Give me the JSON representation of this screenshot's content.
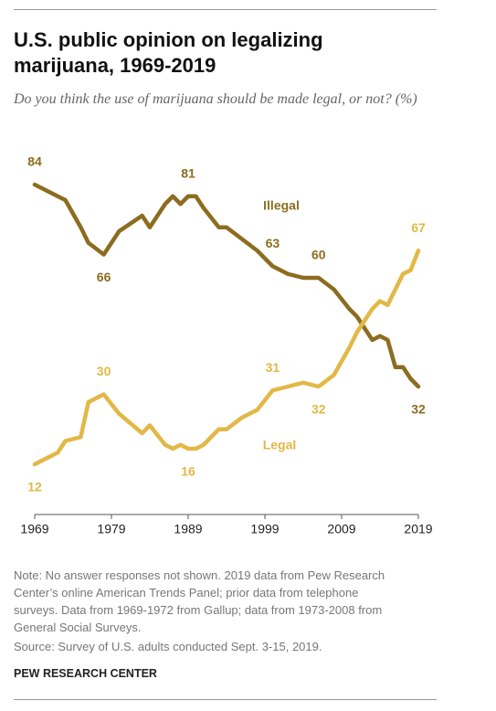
{
  "chart_data": {
    "type": "line",
    "title": "U.S. public opinion on legalizing marijuana, 1969-2019",
    "subtitle": "Do you think the use of marijuana should be made legal, or not? (%)",
    "note": "Note: No answer responses not shown. 2019 data from Pew Research Center’s online American Trends Panel; prior data from telephone surveys. Data from 1969-1972 from Gallup; data from 1973-2008 from General Social Surveys.",
    "source": "Source: Survey of U.S. adults conducted Sept. 3-15, 2019.",
    "credit": "PEW RESEARCH CENTER",
    "x": [
      1969,
      1972,
      1973,
      1975,
      1976,
      1978,
      1980,
      1983,
      1984,
      1986,
      1987,
      1988,
      1989,
      1990,
      1991,
      1993,
      1994,
      1996,
      1998,
      2000,
      2002,
      2004,
      2006,
      2008,
      2010,
      2011,
      2013,
      2014,
      2015,
      2016,
      2017,
      2018,
      2019
    ],
    "series": [
      {
        "name": "Illegal",
        "color": "#8c6d1f",
        "values": [
          84,
          81,
          80,
          73,
          69,
          66,
          72,
          76,
          73,
          79,
          81,
          79,
          81,
          81,
          78,
          73,
          73,
          70,
          67,
          63,
          61,
          60,
          60,
          57,
          52,
          50,
          44,
          45,
          44,
          37,
          37,
          34,
          32
        ],
        "value_labels": [
          "84",
          null,
          null,
          null,
          null,
          "66",
          null,
          null,
          null,
          null,
          null,
          null,
          "81",
          null,
          null,
          null,
          null,
          null,
          null,
          "63",
          null,
          null,
          "60",
          null,
          null,
          null,
          null,
          null,
          null,
          null,
          null,
          null,
          "32"
        ]
      },
      {
        "name": "Legal",
        "color": "#e2b846",
        "values": [
          12,
          15,
          18,
          19,
          28,
          30,
          25,
          20,
          22,
          17,
          16,
          17,
          16,
          16,
          17,
          21,
          21,
          24,
          26,
          31,
          32,
          33,
          32,
          35,
          42,
          46,
          52,
          54,
          53,
          57,
          61,
          62,
          67
        ],
        "value_labels": [
          "12",
          null,
          null,
          null,
          null,
          "30",
          null,
          null,
          null,
          null,
          null,
          null,
          "16",
          null,
          null,
          null,
          null,
          null,
          null,
          "31",
          null,
          null,
          "32",
          null,
          null,
          null,
          null,
          null,
          null,
          null,
          null,
          null,
          "67"
        ]
      }
    ],
    "xlim": [
      1969,
      2019
    ],
    "xticks": [
      1969,
      1979,
      1989,
      1999,
      2009,
      2019
    ],
    "ylim": [
      0,
      90
    ]
  }
}
